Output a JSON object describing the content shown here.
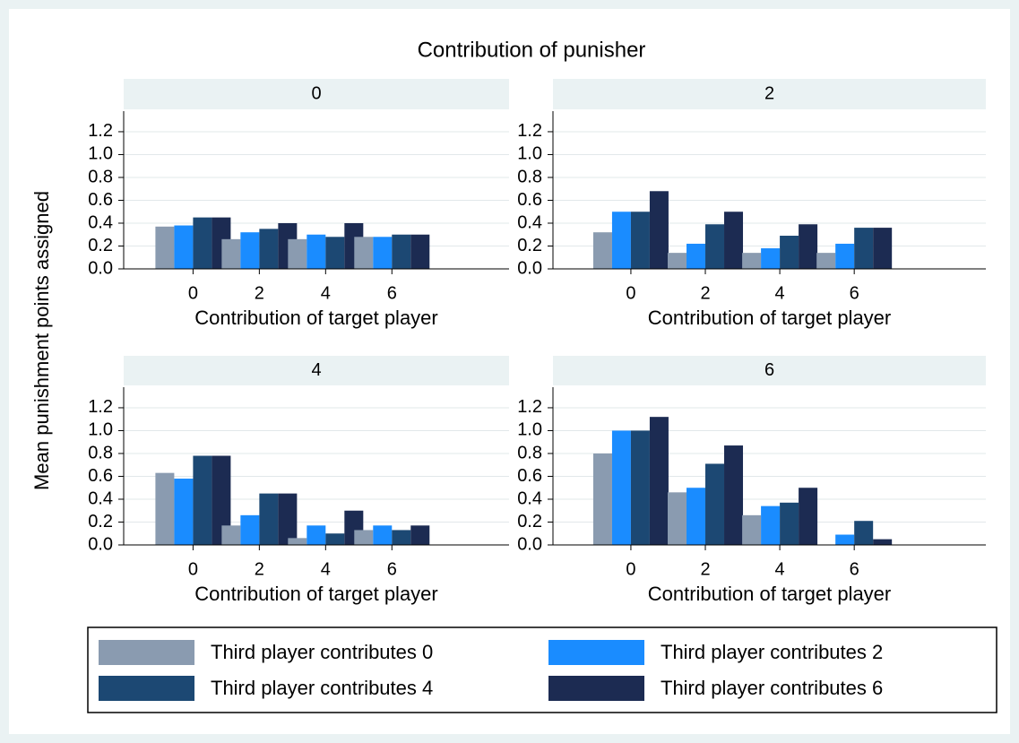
{
  "title": "Contribution of punisher",
  "y_label": "Mean punishment points assigned",
  "chart_data": [
    {
      "type": "bar",
      "title": "0",
      "x_label": "Contribution of target player",
      "categories": [
        "0",
        "2",
        "4",
        "6"
      ],
      "ylim": [
        0,
        1.38
      ],
      "yticks": [
        {
          "value": 0,
          "label": "0.0"
        },
        0.2,
        0.4,
        0.6,
        0.8,
        {
          "value": 1,
          "label": "1.0"
        },
        1.2
      ],
      "grid": true,
      "series": [
        {
          "name": "Third player contributes 0",
          "color": "#8a9bb0",
          "values": [
            0.37,
            0.26,
            0.26,
            0.28
          ]
        },
        {
          "name": "Third player contributes 2",
          "color": "#1a8cff",
          "values": [
            0.38,
            0.32,
            0.3,
            0.28
          ]
        },
        {
          "name": "Third player contributes 4",
          "color": "#1c4873",
          "values": [
            0.45,
            0.35,
            0.28,
            0.3
          ]
        },
        {
          "name": "Third player contributes 6",
          "color": "#1c2b52",
          "values": [
            0.45,
            0.4,
            0.4,
            0.3
          ]
        }
      ]
    },
    {
      "type": "bar",
      "title": "2",
      "x_label": "Contribution of target player",
      "categories": [
        "0",
        "2",
        "4",
        "6"
      ],
      "ylim": [
        0,
        1.38
      ],
      "yticks": [
        {
          "value": 0,
          "label": "0.0"
        },
        0.2,
        0.4,
        0.6,
        0.8,
        {
          "value": 1,
          "label": "1.0"
        },
        1.2
      ],
      "grid": true,
      "series": [
        {
          "name": "Third player contributes 0",
          "color": "#8a9bb0",
          "values": [
            0.32,
            0.14,
            0.14,
            0.14
          ]
        },
        {
          "name": "Third player contributes 2",
          "color": "#1a8cff",
          "values": [
            0.5,
            0.22,
            0.18,
            0.22
          ]
        },
        {
          "name": "Third player contributes 4",
          "color": "#1c4873",
          "values": [
            0.5,
            0.39,
            0.29,
            0.36
          ]
        },
        {
          "name": "Third player contributes 6",
          "color": "#1c2b52",
          "values": [
            0.68,
            0.5,
            0.39,
            0.36
          ]
        }
      ]
    },
    {
      "type": "bar",
      "title": "4",
      "x_label": "Contribution of target player",
      "categories": [
        "0",
        "2",
        "4",
        "6"
      ],
      "ylim": [
        0,
        1.38
      ],
      "yticks": [
        {
          "value": 0,
          "label": "0.0"
        },
        0.2,
        0.4,
        0.6,
        0.8,
        {
          "value": 1,
          "label": "1.0"
        },
        1.2
      ],
      "grid": true,
      "series": [
        {
          "name": "Third player contributes 0",
          "color": "#8a9bb0",
          "values": [
            0.63,
            0.17,
            0.06,
            0.13
          ]
        },
        {
          "name": "Third player contributes 2",
          "color": "#1a8cff",
          "values": [
            0.58,
            0.26,
            0.17,
            0.17
          ]
        },
        {
          "name": "Third player contributes 4",
          "color": "#1c4873",
          "values": [
            0.78,
            0.45,
            0.1,
            0.13
          ]
        },
        {
          "name": "Third player contributes 6",
          "color": "#1c2b52",
          "values": [
            0.78,
            0.45,
            0.3,
            0.17
          ]
        }
      ]
    },
    {
      "type": "bar",
      "title": "6",
      "x_label": "Contribution of target player",
      "categories": [
        "0",
        "2",
        "4",
        "6"
      ],
      "ylim": [
        0,
        1.38
      ],
      "yticks": [
        {
          "value": 0,
          "label": "0.0"
        },
        0.2,
        0.4,
        0.6,
        0.8,
        {
          "value": 1,
          "label": "1.0"
        },
        1.2
      ],
      "grid": true,
      "series": [
        {
          "name": "Third player contributes 0",
          "color": "#8a9bb0",
          "values": [
            0.8,
            0.46,
            0.26,
            null
          ]
        },
        {
          "name": "Third player contributes 2",
          "color": "#1a8cff",
          "values": [
            1.0,
            0.5,
            0.34,
            0.09
          ]
        },
        {
          "name": "Third player contributes 4",
          "color": "#1c4873",
          "values": [
            1.0,
            0.71,
            0.37,
            0.21
          ]
        },
        {
          "name": "Third player contributes 6",
          "color": "#1c2b52",
          "values": [
            1.12,
            0.87,
            0.5,
            0.05
          ]
        }
      ]
    }
  ]
}
